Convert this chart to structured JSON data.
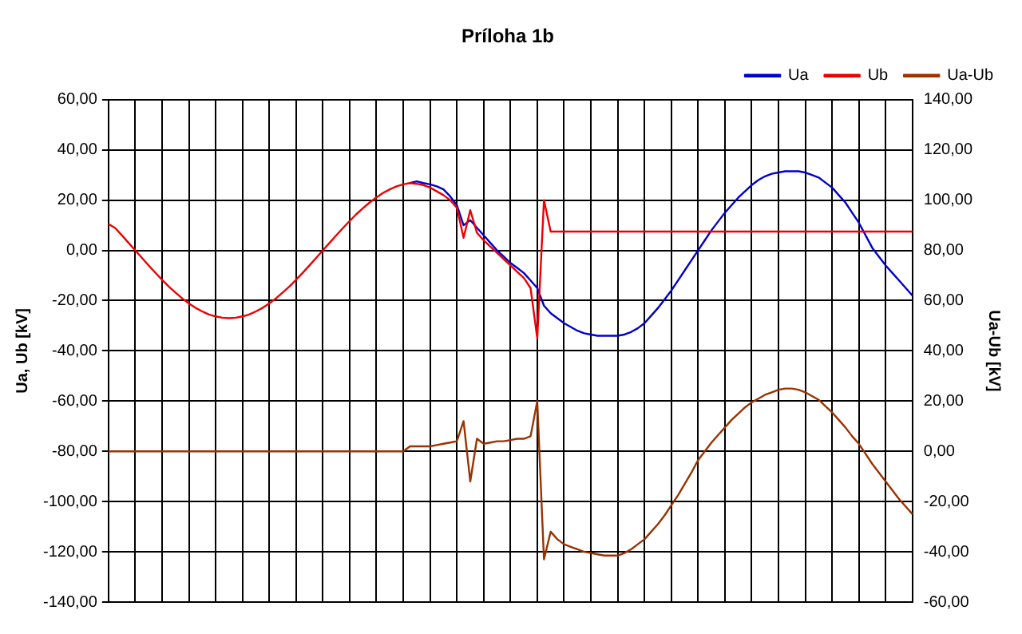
{
  "chart_data": {
    "type": "line",
    "title": "Príloha 1b",
    "ylabel": "Ua, Ub [kV]",
    "y2label": "Ua-Ub [kV]",
    "categories": [
      null,
      null,
      null,
      null,
      null,
      null,
      null,
      null,
      null,
      null,
      null,
      null,
      null,
      null,
      null,
      null,
      null,
      null,
      null,
      null,
      null,
      null,
      null,
      null,
      null,
      null,
      null,
      null,
      null,
      null,
      null,
      null,
      null,
      null,
      null,
      null,
      null,
      null,
      null,
      null,
      null,
      null,
      null,
      null,
      null,
      null,
      null,
      null,
      null,
      null,
      null,
      null,
      null,
      null,
      null,
      null,
      null,
      null,
      null,
      null,
      null,
      null,
      null,
      null,
      null,
      null,
      null,
      null,
      null,
      null,
      null,
      null,
      null,
      null,
      null,
      null,
      null,
      null,
      null,
      null,
      null,
      null,
      null,
      null,
      null,
      null,
      null,
      null,
      null,
      null,
      null,
      null,
      null,
      null,
      null,
      null,
      null,
      null,
      null,
      null,
      null,
      null,
      null,
      null,
      null,
      null,
      null,
      null,
      null,
      null,
      null,
      null,
      null,
      null,
      null,
      null,
      null,
      null,
      null,
      null,
      null
    ],
    "ylim": [
      -140,
      60
    ],
    "yticks": [
      {
        "value": -140,
        "label": "-140,00"
      },
      {
        "value": -120,
        "label": "-120,00"
      },
      {
        "value": -100,
        "label": "-100,00"
      },
      {
        "value": -80,
        "label": "-80,00"
      },
      {
        "value": -60,
        "label": "-60,00"
      },
      {
        "value": -40,
        "label": "-40,00"
      },
      {
        "value": -20,
        "label": "-20,00"
      },
      {
        "value": 0,
        "label": "0,00"
      },
      {
        "value": 20,
        "label": "20,00"
      },
      {
        "value": 40,
        "label": "40,00"
      },
      {
        "value": 60,
        "label": "60,00"
      }
    ],
    "y2lim": [
      -60,
      140
    ],
    "y2ticks": [
      {
        "value": -60,
        "label": "-60,00"
      },
      {
        "value": -40,
        "label": "-40,00"
      },
      {
        "value": -20,
        "label": "-20,00"
      },
      {
        "value": 0,
        "label": "0,00"
      },
      {
        "value": 20,
        "label": "20,00"
      },
      {
        "value": 40,
        "label": "40,00"
      },
      {
        "value": 60,
        "label": "60,00"
      },
      {
        "value": 80,
        "label": "80,00"
      },
      {
        "value": 100,
        "label": "100,00"
      },
      {
        "value": 120,
        "label": "120,00"
      },
      {
        "value": 140,
        "label": "140,00"
      }
    ],
    "grid": true,
    "legend": "top right",
    "marker": "none",
    "line_style": "solid",
    "series": [
      {
        "name": "Ua",
        "color": "#0000cc",
        "values": [
          null,
          null,
          null,
          null,
          null,
          null,
          null,
          null,
          null,
          null,
          null,
          null,
          null,
          null,
          null,
          null,
          null,
          null,
          null,
          null,
          null,
          null,
          null,
          null,
          null,
          null,
          null,
          null,
          null,
          null,
          null,
          null,
          null,
          null,
          null,
          null,
          null,
          null,
          null,
          null,
          null,
          null,
          null,
          null,
          null,
          26.8,
          27.5,
          26.8,
          26.3,
          25.5,
          24.3,
          21.5,
          18,
          10,
          12,
          9,
          6,
          3,
          0,
          -2.5,
          -5,
          -7,
          -9,
          -12,
          -15,
          -22,
          -25,
          -27,
          -29,
          -30.5,
          -32,
          -33,
          -33.5,
          -34,
          -34,
          -34,
          -34,
          -33.5,
          -32.5,
          -31,
          -29,
          -26,
          -23,
          -19.5,
          -16,
          -12,
          -8,
          -4,
          0,
          4,
          8,
          11.5,
          15,
          18,
          21,
          23.5,
          26,
          28,
          29.5,
          30.5,
          31,
          31.5,
          31.5,
          31.5,
          31,
          30,
          29,
          27,
          25,
          22,
          19,
          15,
          11,
          6,
          1,
          -2.5,
          -6,
          -9,
          -12,
          -15,
          -18
        ]
      },
      {
        "name": "Ub",
        "color": "#ee0000",
        "values": [
          10.5,
          8.9,
          6,
          3,
          0,
          -3,
          -6,
          -8.9,
          -11.7,
          -14.4,
          -16.8,
          -19.1,
          -21.1,
          -22.9,
          -24.3,
          -25.5,
          -26.3,
          -26.8,
          -27,
          -26.8,
          -26.3,
          -25.5,
          -24.3,
          -22.9,
          -21.1,
          -19.1,
          -16.8,
          -14.4,
          -11.7,
          -8.9,
          -6,
          -3,
          0,
          3,
          6,
          8.9,
          11.7,
          14.4,
          16.8,
          19.1,
          21.1,
          22.9,
          24.3,
          25.5,
          26.3,
          26.8,
          26.5,
          26,
          25,
          23.5,
          22,
          20,
          17,
          5,
          16,
          7,
          4,
          1.5,
          -1,
          -3.5,
          -6,
          -8.5,
          -11,
          -15,
          -35,
          20,
          7.5,
          7.5,
          7.5,
          7.5,
          7.5,
          7.5,
          7.5,
          7.5,
          7.5,
          7.5,
          7.5,
          7.5,
          7.5,
          7.5,
          7.5,
          7.5,
          7.5,
          7.5,
          7.5,
          7.5,
          7.5,
          7.5,
          7.5,
          7.5,
          7.5,
          7.5,
          7.5,
          7.5,
          7.5,
          7.5,
          7.5,
          7.5,
          7.5,
          7.5,
          7.5,
          7.5,
          7.5,
          7.5,
          7.5,
          7.5,
          7.5,
          7.5,
          7.5,
          7.5,
          7.5,
          7.5,
          7.5,
          7.5,
          7.5,
          7.5,
          7.5,
          7.5,
          7.5,
          7.5,
          7.5
        ]
      },
      {
        "name": "Ua-Ub",
        "color": "#993300",
        "axis": "y2",
        "values": [
          0,
          0,
          0,
          0,
          0,
          0,
          0,
          0,
          0,
          0,
          0,
          0,
          0,
          0,
          0,
          0,
          0,
          0,
          0,
          0,
          0,
          0,
          0,
          0,
          0,
          0,
          0,
          0,
          0,
          0,
          0,
          0,
          0,
          0,
          0,
          0,
          0,
          0,
          0,
          0,
          0,
          0,
          0,
          0,
          0,
          2,
          2,
          2,
          2,
          2.5,
          3,
          3.5,
          4,
          12,
          -12,
          5,
          3,
          3.5,
          4,
          4,
          4.5,
          5,
          5,
          6,
          20,
          -43,
          -32,
          -35,
          -37,
          -38,
          -39,
          -40,
          -40.5,
          -41,
          -41.5,
          -41.5,
          -41.5,
          -40.5,
          -39,
          -37,
          -35,
          -32,
          -29,
          -25.5,
          -21.5,
          -17.5,
          -13,
          -8.5,
          -3.5,
          0,
          3.5,
          6.5,
          9.5,
          12.5,
          15,
          17.5,
          19.5,
          21,
          22.5,
          23.5,
          24.5,
          25,
          25,
          24.5,
          23.5,
          22,
          20.5,
          18,
          15.5,
          12.5,
          9.5,
          6,
          3,
          -1,
          -5,
          -8.5,
          -12,
          -15.5,
          -19,
          -22,
          -25
        ]
      }
    ]
  }
}
